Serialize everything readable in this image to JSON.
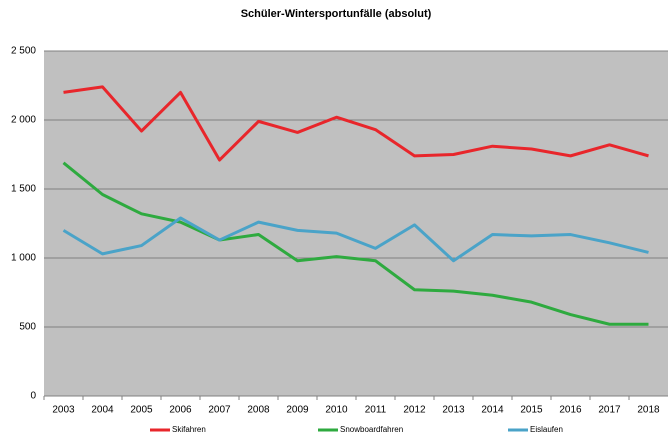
{
  "chart_data": {
    "type": "line",
    "title": "Schüler-Wintersportunfälle (absolut)",
    "categories": [
      "2003",
      "2004",
      "2005",
      "2006",
      "2007",
      "2008",
      "2009",
      "2010",
      "2011",
      "2012",
      "2013",
      "2014",
      "2015",
      "2016",
      "2017",
      "2018"
    ],
    "series": [
      {
        "name": "Skifahren",
        "color": "#e8262b",
        "values": [
          2200,
          2240,
          1920,
          2200,
          1710,
          1990,
          1910,
          2020,
          1930,
          1740,
          1750,
          1810,
          1790,
          1740,
          1820,
          1740
        ]
      },
      {
        "name": "Snowboardfahren",
        "color": "#2eaa3f",
        "values": [
          1690,
          1460,
          1320,
          1260,
          1130,
          1170,
          980,
          1010,
          980,
          770,
          760,
          730,
          680,
          590,
          520,
          520
        ]
      },
      {
        "name": "Eislaufen",
        "color": "#4aa3c8",
        "values": [
          1200,
          1030,
          1090,
          1290,
          1130,
          1260,
          1200,
          1180,
          1070,
          1240,
          980,
          1170,
          1160,
          1170,
          1110,
          1040
        ]
      }
    ],
    "ylim": [
      0,
      2500
    ],
    "yticks": [
      0,
      500,
      {
        "value": 1000,
        "label": "1 000"
      },
      {
        "value": 1500,
        "label": "1 500"
      },
      {
        "value": 2000,
        "label": "2 000"
      },
      {
        "value": 2500,
        "label": "2 500"
      }
    ],
    "grid": true,
    "legend": "bottom"
  }
}
